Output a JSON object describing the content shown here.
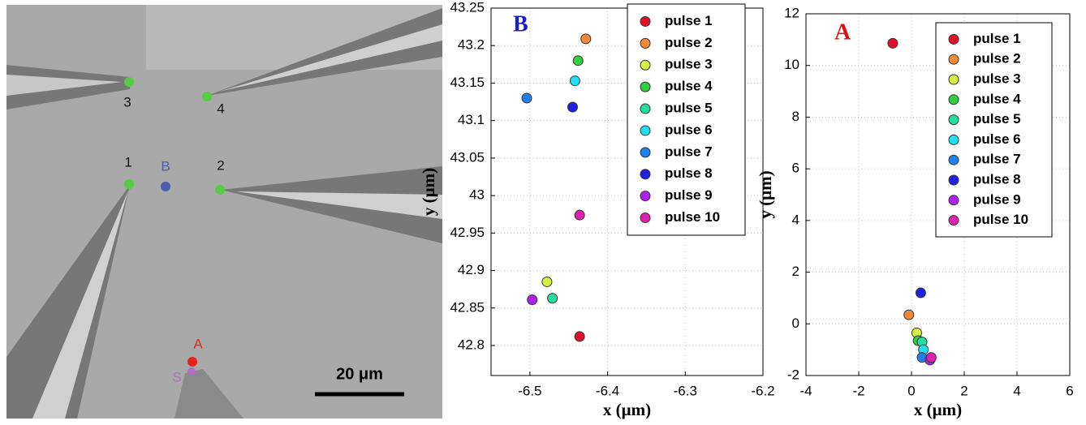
{
  "image_panel": {
    "labels": [
      "1",
      "2",
      "3",
      "4",
      "B",
      "A",
      "S"
    ],
    "scale_bar": "20 μm"
  },
  "chart_data": [
    {
      "type": "scatter",
      "annotation": "B",
      "annotation_color": "#1a1ad0",
      "xlabel": "x (μm)",
      "ylabel": "y (μm)",
      "xlim": [
        -6.55,
        -6.2
      ],
      "xticks": [
        -6.5,
        -6.4,
        -6.3,
        -6.2
      ],
      "ylim": [
        42.76,
        43.25
      ],
      "yticks": [
        42.8,
        42.85,
        42.9,
        42.95,
        43,
        43.05,
        43.1,
        43.15,
        43.2,
        43.25
      ],
      "grid": true,
      "legend": "upper right",
      "series": [
        {
          "name": "pulse 1",
          "color": "#e0102a",
          "x": [
            -6.436
          ],
          "values": [
            42.812
          ]
        },
        {
          "name": "pulse 2",
          "color": "#f08a3a",
          "x": [
            -6.428
          ],
          "values": [
            43.209
          ]
        },
        {
          "name": "pulse 3",
          "color": "#d8f040",
          "x": [
            -6.478
          ],
          "values": [
            42.885
          ]
        },
        {
          "name": "pulse 4",
          "color": "#30d040",
          "x": [
            -6.438
          ],
          "values": [
            43.18
          ]
        },
        {
          "name": "pulse 5",
          "color": "#20e0a0",
          "x": [
            -6.471
          ],
          "values": [
            42.863
          ]
        },
        {
          "name": "pulse 6",
          "color": "#20e0f8",
          "x": [
            -6.442
          ],
          "values": [
            43.153
          ]
        },
        {
          "name": "pulse 7",
          "color": "#2080f0",
          "x": [
            -6.504
          ],
          "values": [
            43.13
          ]
        },
        {
          "name": "pulse 8",
          "color": "#2020e0",
          "x": [
            -6.445
          ],
          "values": [
            43.118
          ]
        },
        {
          "name": "pulse 9",
          "color": "#b020f0",
          "x": [
            -6.497
          ],
          "values": [
            42.861
          ]
        },
        {
          "name": "pulse 10",
          "color": "#e020b0",
          "x": [
            -6.436
          ],
          "values": [
            42.974
          ]
        }
      ]
    },
    {
      "type": "scatter",
      "annotation": "A",
      "annotation_color": "#e01010",
      "xlabel": "x (μm)",
      "ylabel": "y (μm)",
      "xlim": [
        -4,
        6
      ],
      "xticks": [
        -4,
        -2,
        0,
        2,
        4,
        6
      ],
      "ylim": [
        -2,
        12
      ],
      "yticks": [
        -2,
        0,
        2,
        4,
        6,
        8,
        10,
        12
      ],
      "grid": true,
      "legend": "upper right",
      "series": [
        {
          "name": "pulse 1",
          "color": "#e0102a",
          "x": [
            -0.71
          ],
          "values": [
            10.86
          ]
        },
        {
          "name": "pulse 2",
          "color": "#f08a3a",
          "x": [
            -0.1
          ],
          "values": [
            0.35
          ]
        },
        {
          "name": "pulse 3",
          "color": "#d8f040",
          "x": [
            0.2
          ],
          "values": [
            -0.35
          ]
        },
        {
          "name": "pulse 4",
          "color": "#30d040",
          "x": [
            0.25
          ],
          "values": [
            -0.65
          ]
        },
        {
          "name": "pulse 5",
          "color": "#20e0a0",
          "x": [
            0.4
          ],
          "values": [
            -0.7
          ]
        },
        {
          "name": "pulse 6",
          "color": "#20e0f8",
          "x": [
            0.45
          ],
          "values": [
            -1.0
          ]
        },
        {
          "name": "pulse 7",
          "color": "#2080f0",
          "x": [
            0.4
          ],
          "values": [
            -1.3
          ]
        },
        {
          "name": "pulse 8",
          "color": "#2020e0",
          "x": [
            0.35
          ],
          "values": [
            1.2
          ]
        },
        {
          "name": "pulse 9",
          "color": "#b020f0",
          "x": [
            0.7
          ],
          "values": [
            -1.4
          ]
        },
        {
          "name": "pulse 10",
          "color": "#e020b0",
          "x": [
            0.75
          ],
          "values": [
            -1.3
          ]
        }
      ]
    }
  ]
}
